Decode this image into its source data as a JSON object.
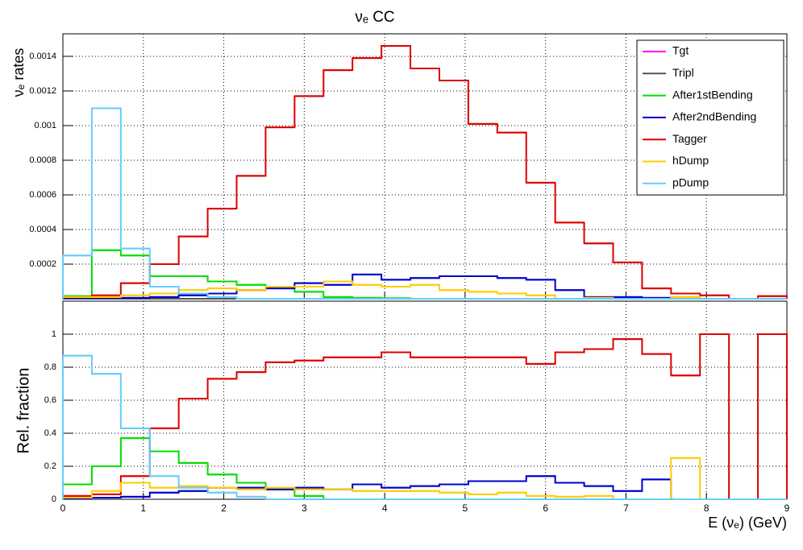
{
  "chart_data": [
    {
      "type": "histogram",
      "title": "νₑ CC",
      "ylabel": "νₑ rates",
      "bins": [
        0,
        0.36,
        0.72,
        1.08,
        1.44,
        1.8,
        2.16,
        2.52,
        2.88,
        3.24,
        3.6,
        3.96,
        4.32,
        4.68,
        5.04,
        5.4,
        5.76,
        6.12,
        6.48,
        6.84,
        7.2,
        7.56,
        7.92,
        8.28,
        8.64,
        9
      ],
      "xlim": [
        0,
        9
      ],
      "xticks": [
        0,
        1,
        2,
        3,
        4,
        5,
        6,
        7,
        8,
        9
      ],
      "ylim": [
        0,
        0.00153
      ],
      "yticks": [
        0.0002,
        0.0004,
        0.0006,
        0.0008,
        0.001,
        0.0012,
        0.0014
      ],
      "grid": true,
      "legend": "top-right",
      "series": [
        {
          "name": "Tgt",
          "color": "#ff00ff",
          "values": [
            0,
            0,
            0,
            0,
            0,
            0,
            0,
            0,
            0,
            0,
            0,
            0,
            0,
            0,
            0,
            0,
            0,
            0,
            0,
            0,
            0,
            0,
            0,
            0,
            0
          ]
        },
        {
          "name": "Tripl",
          "color": "#555555",
          "values": [
            0,
            0,
            0,
            0,
            0,
            0,
            0,
            0,
            0,
            0,
            0,
            0,
            0,
            0,
            0,
            0,
            0,
            0,
            0,
            0,
            0,
            0,
            0,
            0,
            0
          ]
        },
        {
          "name": "After1stBending",
          "color": "#00dd00",
          "values": [
            1.5e-05,
            0.00028,
            0.00025,
            0.00013,
            0.00013,
            0.0001,
            8e-05,
            7e-05,
            4e-05,
            1e-05,
            5e-06,
            3e-06,
            0,
            0,
            0,
            0,
            0,
            0,
            0,
            0,
            0,
            0,
            0,
            0,
            0
          ]
        },
        {
          "name": "After2ndBending",
          "color": "#0000cc",
          "values": [
            5e-06,
            5e-06,
            5e-06,
            1e-05,
            2e-05,
            3e-05,
            5e-05,
            6e-05,
            9e-05,
            8e-05,
            0.00014,
            0.00011,
            0.00012,
            0.00013,
            0.00013,
            0.00012,
            0.00011,
            5e-05,
            1e-05,
            1e-05,
            5e-06,
            0,
            0,
            0,
            0
          ]
        },
        {
          "name": "Tagger",
          "color": "#dd0000",
          "values": [
            1e-05,
            2e-05,
            9e-05,
            0.0002,
            0.00036,
            0.00052,
            0.00071,
            0.00099,
            0.00117,
            0.00132,
            0.00139,
            0.00146,
            0.00133,
            0.00126,
            0.00101,
            0.00096,
            0.00067,
            0.00044,
            0.00032,
            0.00021,
            6e-05,
            3e-05,
            2e-05,
            0,
            1.5e-05
          ]
        },
        {
          "name": "hDump",
          "color": "#ffcc00",
          "values": [
            1e-05,
            1e-05,
            2e-05,
            3e-05,
            5e-05,
            6e-05,
            5e-05,
            7e-05,
            7e-05,
            0.0001,
            8e-05,
            7e-05,
            8e-05,
            5e-05,
            4e-05,
            3e-05,
            2e-05,
            0,
            5e-06,
            0,
            0,
            1e-05,
            0,
            0,
            0
          ]
        },
        {
          "name": "pDump",
          "color": "#66ccff",
          "values": [
            0.00025,
            0.0011,
            0.00029,
            7e-05,
            3e-05,
            1e-05,
            0,
            0,
            0,
            0,
            0,
            0,
            0,
            0,
            0,
            0,
            0,
            0,
            0,
            0,
            0,
            0,
            0,
            0,
            0
          ]
        }
      ]
    },
    {
      "type": "histogram",
      "ylabel": "Rel. fraction",
      "xlabel": "E (νₑ) (GeV)",
      "bins": [
        0,
        0.36,
        0.72,
        1.08,
        1.44,
        1.8,
        2.16,
        2.52,
        2.88,
        3.24,
        3.6,
        3.96,
        4.32,
        4.68,
        5.04,
        5.4,
        5.76,
        6.12,
        6.48,
        6.84,
        7.2,
        7.56,
        7.92,
        8.28,
        8.64,
        9
      ],
      "xlim": [
        0,
        9
      ],
      "xticks": [
        0,
        1,
        2,
        3,
        4,
        5,
        6,
        7,
        8,
        9
      ],
      "ylim": [
        0,
        1.2
      ],
      "yticks": [
        0,
        0.2,
        0.4,
        0.6,
        0.8,
        1
      ],
      "grid": true,
      "series": [
        {
          "color": "#00dd00",
          "values": [
            0.09,
            0.2,
            0.37,
            0.29,
            0.22,
            0.15,
            0.1,
            0.06,
            0.02,
            0,
            0,
            0,
            0,
            0,
            0,
            0,
            0,
            0,
            0,
            0,
            0,
            0,
            0,
            0,
            0
          ]
        },
        {
          "color": "#0000cc",
          "values": [
            0.005,
            0.01,
            0.015,
            0.04,
            0.05,
            0.07,
            0.07,
            0.06,
            0.07,
            0.06,
            0.09,
            0.07,
            0.08,
            0.09,
            0.11,
            0.11,
            0.14,
            0.1,
            0.08,
            0.05,
            0.12,
            0,
            0,
            0,
            0
          ]
        },
        {
          "color": "#dd0000",
          "values": [
            0.02,
            0.03,
            0.14,
            0.43,
            0.61,
            0.73,
            0.77,
            0.83,
            0.84,
            0.86,
            0.86,
            0.89,
            0.86,
            0.86,
            0.86,
            0.86,
            0.82,
            0.89,
            0.91,
            0.97,
            0.88,
            0.75,
            1,
            0,
            1
          ]
        },
        {
          "color": "#ffcc00",
          "values": [
            0.01,
            0.05,
            0.1,
            0.07,
            0.08,
            0.07,
            0.06,
            0.07,
            0.06,
            0.06,
            0.05,
            0.05,
            0.05,
            0.04,
            0.03,
            0.04,
            0.02,
            0.015,
            0.02,
            0,
            0,
            0.25,
            0,
            0,
            0
          ]
        },
        {
          "color": "#66ccff",
          "values": [
            0.87,
            0.76,
            0.43,
            0.14,
            0.07,
            0.04,
            0.015,
            0,
            0,
            0,
            0,
            0,
            0,
            0,
            0,
            0,
            0,
            0,
            0,
            0,
            0,
            0,
            0,
            0,
            0
          ]
        }
      ]
    }
  ]
}
